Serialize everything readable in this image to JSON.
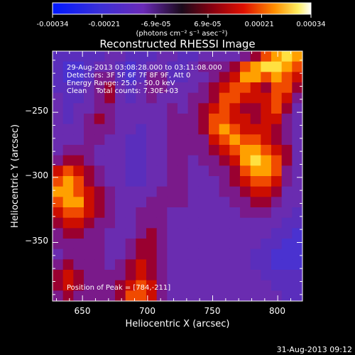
{
  "colorbar": {
    "tick_labels": [
      "-0.00034",
      "-0.00021",
      "-6.9e-05",
      "6.9e-05",
      "0.00021",
      "0.00034"
    ],
    "tick_values": [
      -0.00034,
      -0.00021,
      -6.9e-05,
      6.9e-05,
      0.00021,
      0.00034
    ],
    "range": [
      -0.00034,
      0.00034
    ],
    "units": "(photons cm⁻² s⁻¹ asec⁻²)"
  },
  "title": "Reconstructed RHESSI Image",
  "annotation": {
    "line1": "29-Aug-2013 03:08:28.000 to 03:11:08.000",
    "line2": "Detectors: 3F 5F 6F 7F 8F 9F, Att 0",
    "line3": "Energy Range: 25.0 - 50.0 keV",
    "line4": "Clean    Total counts: 7.30E+03",
    "peak": "Position of Peak = [784,-211]"
  },
  "footer_timestamp": "31-Aug-2013 09:12",
  "chart_data": {
    "type": "heatmap",
    "title": "Reconstructed RHESSI Image",
    "xlabel": "Heliocentric X (arcsec)",
    "ylabel": "Heliocentric Y (arcsec)",
    "xlim": [
      627,
      819
    ],
    "ylim": [
      -395,
      -203
    ],
    "xticks": [
      650,
      700,
      750,
      800
    ],
    "yticks": [
      -250,
      -300,
      -350
    ],
    "xtick_labels": [
      "650",
      "700",
      "750",
      "800"
    ],
    "ytick_labels": [
      "−250",
      "−300",
      "−350"
    ],
    "colormap": "blue-purple-red-yellow-white (RHESSI)",
    "value_range": [
      -0.00034,
      0.00034
    ],
    "peak_position": [
      784,
      -211
    ],
    "grid": [
      [
        3,
        3,
        3,
        3,
        3,
        4,
        4,
        3,
        3,
        3,
        4,
        4,
        3,
        3,
        4,
        4,
        4,
        4,
        5,
        6,
        8,
        9,
        10,
        9
      ],
      [
        3,
        2,
        2,
        3,
        4,
        4,
        3,
        2,
        3,
        4,
        4,
        3,
        3,
        4,
        5,
        5,
        5,
        6,
        8,
        9,
        10,
        10,
        9,
        8
      ],
      [
        3,
        2,
        2,
        3,
        5,
        5,
        3,
        2,
        3,
        5,
        5,
        3,
        3,
        4,
        4,
        5,
        6,
        7,
        9,
        9,
        8,
        9,
        8,
        7
      ],
      [
        3,
        3,
        3,
        4,
        5,
        6,
        4,
        3,
        4,
        5,
        5,
        4,
        4,
        4,
        5,
        6,
        7,
        8,
        8,
        7,
        6,
        8,
        8,
        6
      ],
      [
        4,
        3,
        3,
        4,
        5,
        6,
        4,
        3,
        4,
        5,
        4,
        4,
        4,
        5,
        5,
        6,
        8,
        8,
        7,
        7,
        7,
        8,
        7,
        5
      ],
      [
        4,
        3,
        4,
        4,
        5,
        5,
        4,
        4,
        4,
        4,
        4,
        5,
        4,
        5,
        6,
        7,
        8,
        7,
        6,
        6,
        7,
        8,
        6,
        4
      ],
      [
        4,
        3,
        4,
        5,
        6,
        5,
        4,
        4,
        4,
        4,
        4,
        5,
        5,
        5,
        6,
        8,
        8,
        7,
        7,
        6,
        7,
        7,
        5,
        4
      ],
      [
        4,
        4,
        4,
        5,
        5,
        5,
        4,
        4,
        3,
        4,
        4,
        5,
        5,
        5,
        6,
        8,
        9,
        8,
        7,
        7,
        7,
        6,
        5,
        4
      ],
      [
        4,
        4,
        4,
        5,
        5,
        4,
        4,
        3,
        3,
        4,
        4,
        5,
        5,
        5,
        5,
        7,
        8,
        9,
        8,
        8,
        7,
        6,
        5,
        4
      ],
      [
        4,
        5,
        5,
        5,
        4,
        4,
        4,
        3,
        3,
        4,
        4,
        5,
        5,
        5,
        5,
        6,
        7,
        8,
        9,
        9,
        8,
        7,
        6,
        4
      ],
      [
        5,
        6,
        6,
        5,
        4,
        4,
        4,
        3,
        3,
        4,
        4,
        5,
        5,
        4,
        5,
        5,
        6,
        7,
        9,
        10,
        9,
        8,
        6,
        4
      ],
      [
        7,
        8,
        7,
        6,
        5,
        4,
        4,
        3,
        3,
        4,
        4,
        5,
        5,
        4,
        4,
        5,
        5,
        6,
        8,
        9,
        9,
        8,
        5,
        4
      ],
      [
        8,
        9,
        8,
        6,
        5,
        4,
        4,
        3,
        3,
        4,
        4,
        5,
        5,
        4,
        4,
        4,
        5,
        6,
        7,
        8,
        8,
        7,
        5,
        4
      ],
      [
        9,
        9,
        8,
        7,
        6,
        5,
        4,
        4,
        4,
        4,
        5,
        5,
        5,
        4,
        4,
        4,
        5,
        5,
        6,
        7,
        7,
        6,
        4,
        4
      ],
      [
        8,
        9,
        9,
        7,
        6,
        5,
        4,
        4,
        4,
        5,
        5,
        5,
        5,
        4,
        4,
        4,
        4,
        5,
        5,
        6,
        6,
        5,
        4,
        4
      ],
      [
        7,
        8,
        8,
        7,
        6,
        5,
        4,
        4,
        5,
        5,
        5,
        4,
        4,
        4,
        4,
        4,
        4,
        4,
        5,
        5,
        5,
        4,
        4,
        3
      ],
      [
        6,
        7,
        7,
        6,
        5,
        5,
        4,
        4,
        5,
        5,
        5,
        4,
        4,
        4,
        4,
        4,
        4,
        4,
        4,
        4,
        4,
        4,
        3,
        3
      ],
      [
        5,
        6,
        6,
        5,
        5,
        4,
        4,
        4,
        5,
        6,
        5,
        4,
        4,
        4,
        4,
        4,
        4,
        4,
        4,
        4,
        4,
        3,
        3,
        2
      ],
      [
        5,
        5,
        5,
        5,
        5,
        4,
        4,
        5,
        6,
        6,
        5,
        4,
        4,
        4,
        4,
        4,
        4,
        4,
        4,
        4,
        3,
        3,
        2,
        2
      ],
      [
        4,
        5,
        5,
        5,
        5,
        4,
        4,
        5,
        6,
        6,
        5,
        4,
        4,
        4,
        4,
        4,
        4,
        4,
        4,
        3,
        3,
        2,
        2,
        2
      ],
      [
        5,
        6,
        5,
        5,
        5,
        4,
        5,
        6,
        7,
        6,
        5,
        4,
        4,
        4,
        4,
        4,
        4,
        4,
        4,
        3,
        3,
        2,
        2,
        2
      ],
      [
        6,
        7,
        6,
        5,
        5,
        5,
        5,
        6,
        7,
        6,
        5,
        4,
        4,
        4,
        4,
        4,
        4,
        4,
        4,
        4,
        3,
        3,
        3,
        3
      ],
      [
        6,
        7,
        6,
        5,
        5,
        5,
        6,
        7,
        8,
        7,
        5,
        4,
        4,
        4,
        4,
        4,
        4,
        4,
        4,
        4,
        4,
        3,
        3,
        3
      ],
      [
        5,
        6,
        5,
        5,
        5,
        5,
        6,
        8,
        8,
        7,
        5,
        4,
        4,
        4,
        4,
        4,
        4,
        4,
        4,
        4,
        4,
        4,
        3,
        3
      ]
    ]
  }
}
